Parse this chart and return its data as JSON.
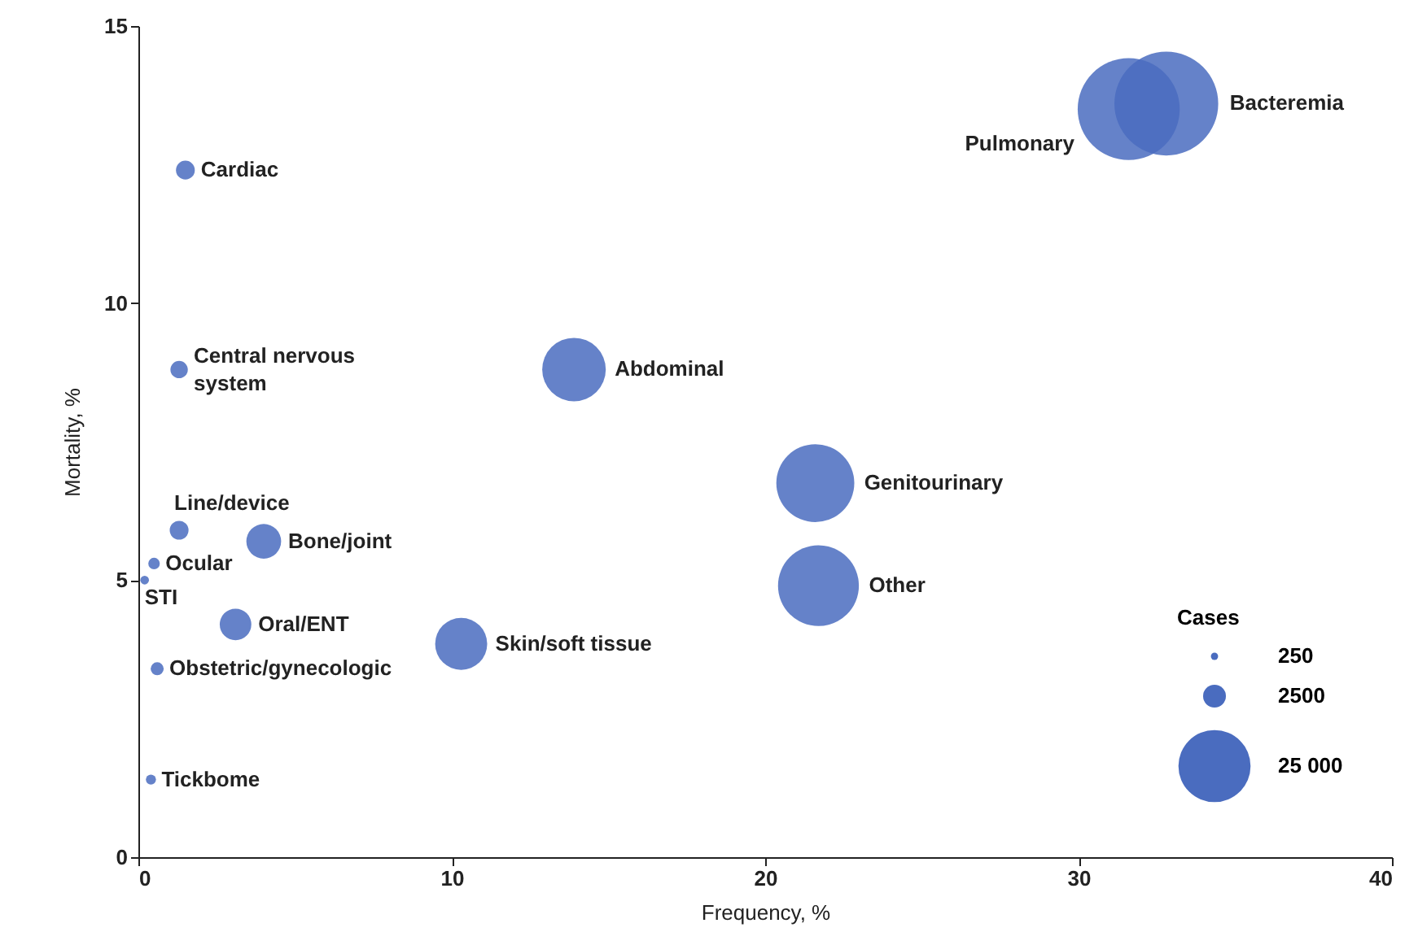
{
  "chart_data": {
    "type": "bubble",
    "xlabel": "Frequency, %",
    "ylabel": "Mortality, %",
    "legend_title": "Cases",
    "color": "#4a6cbf",
    "xlim": [
      0,
      40
    ],
    "ylim": [
      0,
      15
    ],
    "xticks": [
      0,
      10,
      20,
      30,
      40
    ],
    "yticks": [
      0,
      5,
      10,
      15
    ],
    "grid": false,
    "x": [
      32.8,
      31.6,
      1.5,
      1.3,
      13.9,
      21.6,
      21.7,
      10.3,
      1.3,
      4.0,
      0.5,
      0.2,
      3.1,
      0.6,
      0.4
    ],
    "values": [
      13.6,
      13.5,
      12.4,
      8.8,
      8.8,
      6.75,
      4.9,
      3.85,
      5.9,
      5.7,
      5.3,
      5.0,
      4.2,
      3.4,
      1.4
    ],
    "sizes": [
      51800,
      50000,
      1700,
      1450,
      19400,
      29200,
      31400,
      13000,
      1700,
      5800,
      640,
      360,
      4800,
      810,
      490
    ],
    "size_legend": [
      250,
      2500,
      {
        "value": 25000,
        "label": "25 000"
      }
    ],
    "annotations": [
      {
        "text": "Bacteremia",
        "x": 32.8,
        "y": 13.6
      },
      {
        "text": "Pulmonary",
        "x": 31.6,
        "y": 13.5
      },
      {
        "text": "Cardiac",
        "x": 1.5,
        "y": 12.4
      },
      {
        "text": "Central nervous system",
        "x": 1.3,
        "y": 8.8
      },
      {
        "text": "Abdominal",
        "x": 13.9,
        "y": 8.8
      },
      {
        "text": "Genitourinary",
        "x": 21.6,
        "y": 6.75
      },
      {
        "text": "Other",
        "x": 21.7,
        "y": 4.9
      },
      {
        "text": "Skin/soft tissue",
        "x": 10.3,
        "y": 3.85
      },
      {
        "text": "Line/device",
        "x": 1.3,
        "y": 5.9
      },
      {
        "text": "Bone/joint",
        "x": 4.0,
        "y": 5.7
      },
      {
        "text": "Ocular",
        "x": 0.5,
        "y": 5.3
      },
      {
        "text": "STI",
        "x": 0.2,
        "y": 5.0
      },
      {
        "text": "Oral/ENT",
        "x": 3.1,
        "y": 4.2
      },
      {
        "text": "Obstetric/gynecologic",
        "x": 0.6,
        "y": 3.4
      },
      {
        "text": "Tickbome",
        "x": 0.4,
        "y": 1.4
      }
    ]
  }
}
